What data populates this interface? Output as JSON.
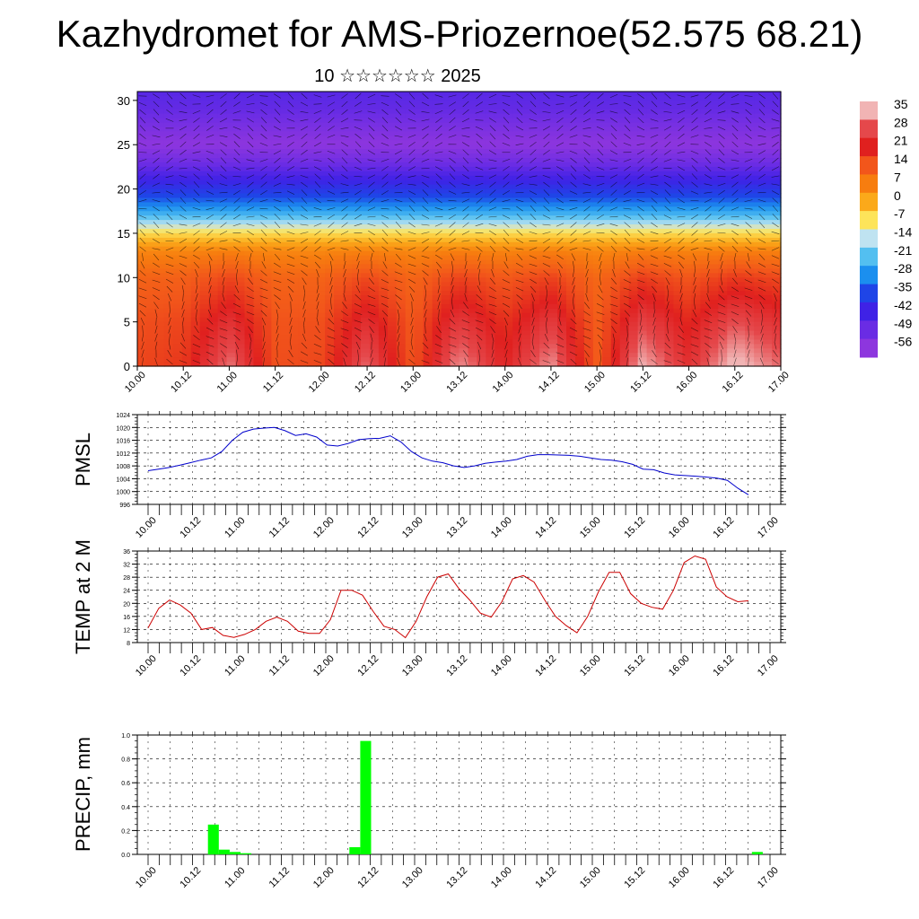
{
  "header": {
    "title": "Kazhydromet for AMS-Priozernoe(52.575 68.21)",
    "subtitle": "10 ☆☆☆☆☆☆ 2025"
  },
  "chart_data": [
    {
      "type": "heatmap",
      "variable": "temperature cross-section with wind arrows",
      "xlabel": "",
      "ylabel": "",
      "x_tick_labels": [
        "10.00",
        "10.12",
        "11.00",
        "11.12",
        "12.00",
        "12.12",
        "13.00",
        "13.12",
        "14.00",
        "14.12",
        "15.00",
        "15.12",
        "16.00",
        "16.12",
        "17.00"
      ],
      "y_ticks": [
        0,
        5,
        10,
        15,
        20,
        25,
        30
      ],
      "ylim": [
        0,
        31
      ],
      "colorbar": {
        "labels": [
          35,
          28,
          21,
          14,
          7,
          0,
          -7,
          -14,
          -21,
          -28,
          -35,
          -42,
          -49,
          -56
        ],
        "colors": [
          "#f1b4b4",
          "#e5484b",
          "#e0201f",
          "#f2561b",
          "#f77d0f",
          "#fba91a",
          "#fde45a",
          "#bfe3f1",
          "#53bff0",
          "#1b8fef",
          "#1f45e7",
          "#3f22e6",
          "#6a2ce4",
          "#8d36de"
        ]
      },
      "temperature_profile": {
        "levels": [
          0,
          5,
          10,
          13,
          15,
          17,
          19,
          21,
          23,
          25,
          27,
          29,
          31
        ],
        "values": [
          24,
          20,
          14,
          6,
          -6,
          -22,
          -34,
          -42,
          -50,
          -56,
          -52,
          -48,
          -46
        ]
      },
      "temperature_diurnal_anomaly": [
        -8,
        -6,
        7,
        -9,
        -8,
        6,
        -10,
        9,
        -2,
        9,
        -11,
        11,
        0,
        13,
        6
      ]
    },
    {
      "type": "line",
      "ylabel": "PMSL",
      "ylim": [
        996,
        1024
      ],
      "y_ticks": [
        996,
        1000,
        1004,
        1008,
        1012,
        1016,
        1020,
        1024
      ],
      "x_tick_labels": [
        "10.00",
        "10.12",
        "11.00",
        "11.12",
        "12.00",
        "12.12",
        "13.00",
        "13.12",
        "14.00",
        "14.12",
        "15.00",
        "15.12",
        "16.00",
        "16.12",
        "17.00"
      ],
      "series": [
        {
          "color": "#0000cc",
          "values": [
            1006.5,
            1007,
            1007.5,
            1008.2,
            1009,
            1009.8,
            1010.5,
            1012.5,
            1016,
            1018.5,
            1019.5,
            1019.8,
            1020,
            1019,
            1017.5,
            1018,
            1017,
            1014.5,
            1014.2,
            1015,
            1016.2,
            1016.5,
            1016.6,
            1017.4,
            1015.5,
            1012.5,
            1010.5,
            1009.5,
            1009,
            1008,
            1007.5,
            1008,
            1008.8,
            1009.2,
            1009.5,
            1010,
            1011,
            1011.5,
            1011.5,
            1011.4,
            1011.3,
            1011,
            1010.5,
            1010,
            1009.8,
            1009.3,
            1008.5,
            1007,
            1006.8,
            1005.8,
            1005.2,
            1005,
            1004.8,
            1004.5,
            1004.2,
            1003.5,
            1001,
            999
          ]
        }
      ]
    },
    {
      "type": "line",
      "ylabel": "TEMP at 2 M",
      "ylim": [
        8,
        36
      ],
      "y_ticks": [
        8,
        12,
        16,
        20,
        24,
        28,
        32,
        36
      ],
      "x_tick_labels": [
        "10.00",
        "10.12",
        "11.00",
        "11.12",
        "12.00",
        "12.12",
        "13.00",
        "13.12",
        "14.00",
        "14.12",
        "15.00",
        "15.12",
        "16.00",
        "16.12",
        "17.00"
      ],
      "series": [
        {
          "color": "#cc0000",
          "values": [
            12.5,
            18.5,
            21,
            19.5,
            17,
            12,
            12.6,
            10.2,
            9.6,
            10.5,
            12,
            14.5,
            15.8,
            14.5,
            11.5,
            10.8,
            10.8,
            15,
            24,
            24,
            22.5,
            17.5,
            13,
            12,
            9.5,
            14.5,
            22,
            28,
            29,
            24.5,
            21,
            17,
            15.8,
            20.5,
            27.5,
            28.5,
            26.5,
            21,
            16,
            13.2,
            11,
            16,
            23.5,
            29.5,
            29.5,
            23,
            20,
            18.8,
            18.2,
            24,
            32.5,
            34.5,
            33.5,
            25,
            22,
            20.5,
            20.8
          ]
        }
      ]
    },
    {
      "type": "bar",
      "ylabel": "PRECIP, mm",
      "ylim": [
        0,
        1.0
      ],
      "y_ticks": [
        "0.0",
        "0.2",
        "0.4",
        "0.6",
        "0.8",
        "1.0"
      ],
      "x_tick_labels": [
        "10.00",
        "10.12",
        "11.00",
        "11.12",
        "12.00",
        "12.12",
        "13.00",
        "13.12",
        "14.00",
        "14.12",
        "15.00",
        "15.12",
        "16.00",
        "16.12",
        "17.00"
      ],
      "color": "#00ff00",
      "values": [
        0,
        0,
        0,
        0,
        0,
        0,
        0.25,
        0.04,
        0.02,
        0.01,
        0,
        0,
        0,
        0,
        0,
        0,
        0,
        0,
        0,
        0.06,
        0.95,
        0,
        0,
        0,
        0,
        0,
        0,
        0,
        0,
        0,
        0,
        0,
        0,
        0,
        0,
        0,
        0,
        0,
        0,
        0,
        0,
        0,
        0,
        0,
        0,
        0,
        0,
        0,
        0,
        0,
        0,
        0,
        0,
        0,
        0,
        0,
        0.02,
        0
      ]
    }
  ]
}
